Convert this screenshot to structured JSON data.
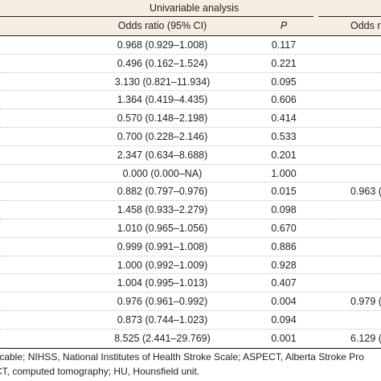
{
  "header": {
    "group_title": "Univariable analysis",
    "col_or": "Odds ratio (95% CI)",
    "col_p": "P",
    "col_or2": "Odds r"
  },
  "rows": [
    {
      "or": "0.968 (0.929–1.008)",
      "p": "0.117",
      "or2": ""
    },
    {
      "or": "0.496 (0.162–1.524)",
      "p": "0.221",
      "or2": ""
    },
    {
      "or": "3.130 (0.821–11.934)",
      "p": "0.095",
      "or2": ""
    },
    {
      "or": "1.364 (0.419–4.435)",
      "p": "0.606",
      "or2": ""
    },
    {
      "or": "0.570 (0.148–2.198)",
      "p": "0.414",
      "or2": ""
    },
    {
      "or": "0.700 (0.228–2.146)",
      "p": "0.533",
      "or2": ""
    },
    {
      "or": "2.347 (0.634–8.688)",
      "p": "0.201",
      "or2": ""
    },
    {
      "or": "0.000 (0.000–NA)",
      "p": "1.000",
      "or2": ""
    },
    {
      "or": "0.882 (0.797–0.976)",
      "p": "0.015",
      "or2": "0.963 ("
    },
    {
      "or": "1.458 (0.933–2.279)",
      "p": "0.098",
      "or2": ""
    },
    {
      "or": "1.010 (0.965–1.056)",
      "p": "0.670",
      "or2": ""
    },
    {
      "or": "0.999 (0.991–1.008)",
      "p": "0.886",
      "or2": ""
    },
    {
      "or": "1.000 (0.992–1.009)",
      "p": "0.928",
      "or2": ""
    },
    {
      "or": "1.004 (0.995–1.013)",
      "p": "0.407",
      "or2": ""
    },
    {
      "or": "0.976 (0.961–0.992)",
      "p": "0.004",
      "or2": "0.979 ("
    },
    {
      "or": "0.873 (0.744–1.023)",
      "p": "0.094",
      "or2": ""
    },
    {
      "or": "8.525 (2.441–29.769)",
      "p": "0.001",
      "or2": "6.129 ("
    }
  ],
  "footnote": {
    "line1": "licable; NIHSS, National Institutes of Health Stroke Scale; ASPECT, Alberta Stroke Pro",
    "line2": "CT, computed tomography; HU, Hounsfield unit."
  }
}
